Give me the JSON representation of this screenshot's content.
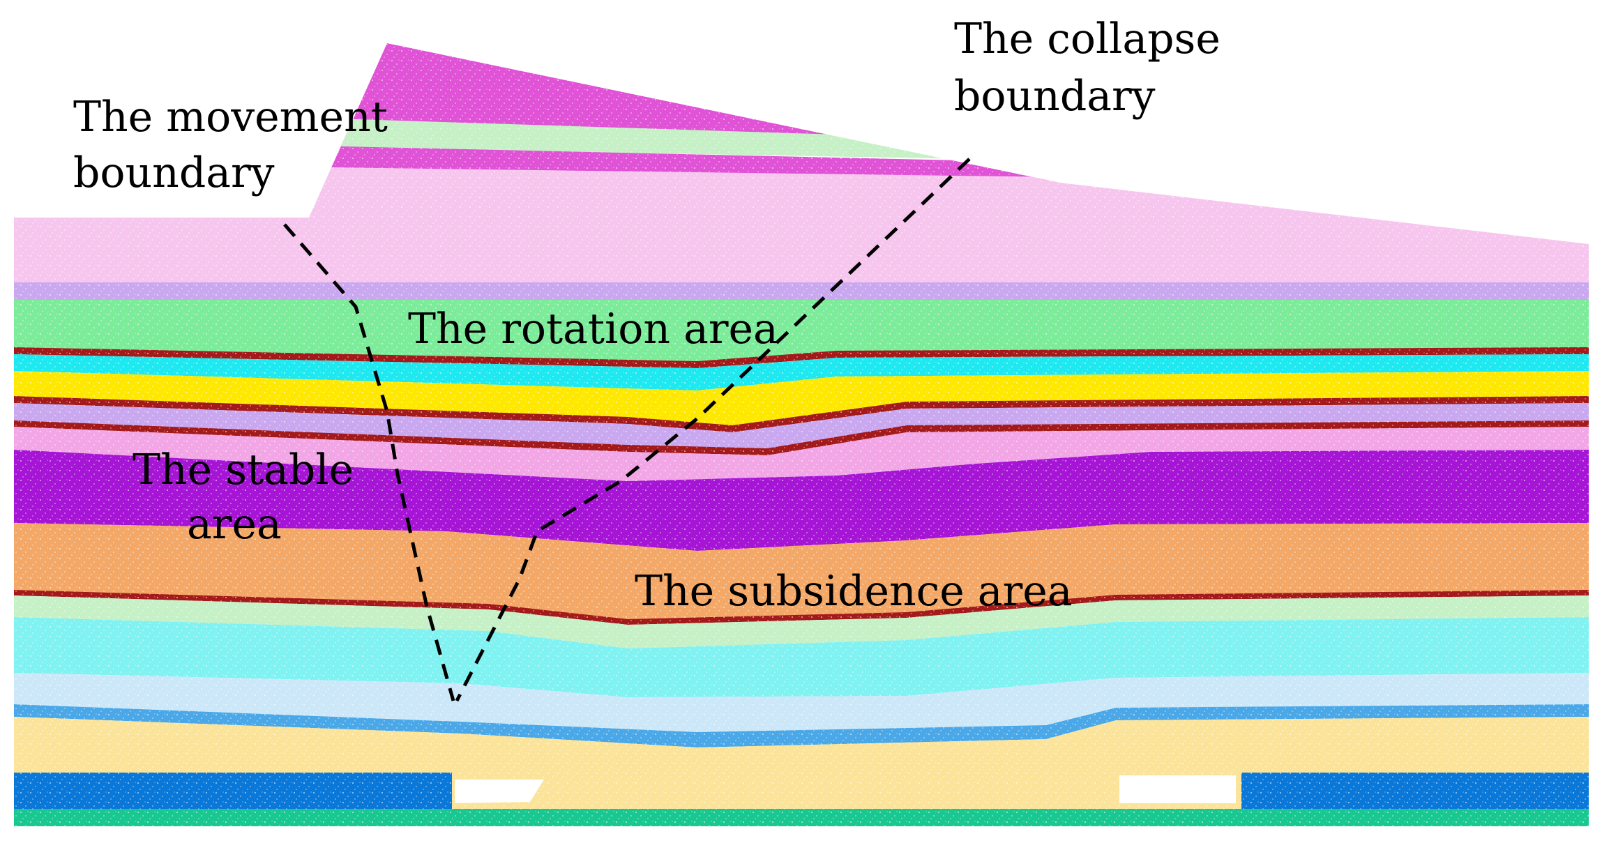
{
  "labels": {
    "movement_boundary": [
      "The movement",
      "boundary"
    ],
    "collapse_boundary": [
      "The collapse",
      "boundary"
    ],
    "rotation_area": "The rotation area",
    "stable_area": [
      "The stable",
      "area"
    ],
    "subsidence_area": "The subsidence area"
  },
  "strata_colors": {
    "sky_pink": "#f2a6e6",
    "magenta": "#e052d6",
    "pale_green": "#c6f0c6",
    "light_pink": "#f7c6ee",
    "lavender": "#c9a8f0",
    "green": "#7cec9a",
    "dark_red": "#a41a1a",
    "cyan": "#1ee8f0",
    "yellow": "#ffe800",
    "purple": "#a614d6",
    "orange": "#f4a868",
    "aqua": "#80f2f2",
    "pale_blue": "#cce8f8",
    "sky_blue": "#4aa8e8",
    "cream": "#fbe49a",
    "blue": "#0a78d8",
    "sea_green": "#18c890"
  }
}
